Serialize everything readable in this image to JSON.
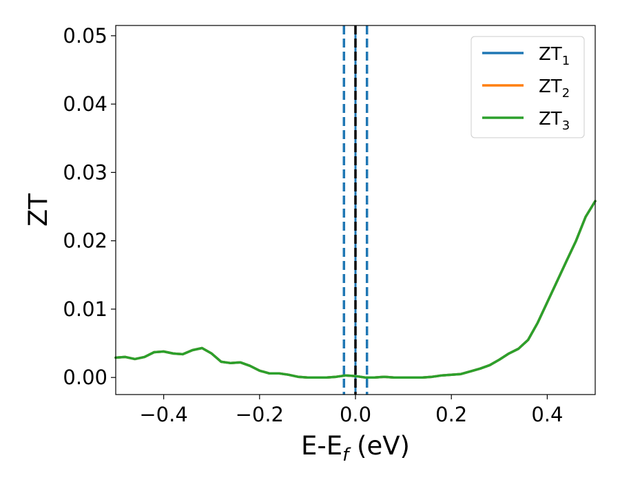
{
  "chart_data": {
    "type": "line",
    "xlabel": {
      "main": "E-E",
      "sub": "f",
      "unit": " (eV)"
    },
    "ylabel": "ZT",
    "xlim": [
      -0.5,
      0.5
    ],
    "ylim": [
      -0.0025,
      0.0515
    ],
    "xticks": [
      -0.4,
      -0.2,
      0.0,
      0.2,
      0.4
    ],
    "xtick_labels": [
      "−0.4",
      "−0.2",
      "0.0",
      "0.2",
      "0.4"
    ],
    "yticks": [
      0.0,
      0.01,
      0.02,
      0.03,
      0.04,
      0.05
    ],
    "ytick_labels": [
      "0.00",
      "0.01",
      "0.02",
      "0.03",
      "0.04",
      "0.05"
    ],
    "legend_position": "top-right",
    "series": [
      {
        "name": "ZT",
        "sub": "1",
        "color": "#1f77b4",
        "points": [
          [
            -0.5,
            0.0029
          ],
          [
            -0.48,
            0.003
          ],
          [
            -0.46,
            0.0027
          ],
          [
            -0.44,
            0.003
          ],
          [
            -0.42,
            0.0037
          ],
          [
            -0.4,
            0.0038
          ],
          [
            -0.38,
            0.0035
          ],
          [
            -0.36,
            0.0034
          ],
          [
            -0.34,
            0.004
          ],
          [
            -0.32,
            0.0043
          ],
          [
            -0.3,
            0.0035
          ],
          [
            -0.28,
            0.0023
          ],
          [
            -0.26,
            0.0021
          ],
          [
            -0.24,
            0.0022
          ],
          [
            -0.22,
            0.0017
          ],
          [
            -0.2,
            0.001
          ],
          [
            -0.18,
            0.0006
          ],
          [
            -0.16,
            0.0006
          ],
          [
            -0.14,
            0.0004
          ],
          [
            -0.12,
            0.0001
          ],
          [
            -0.1,
            0.0
          ],
          [
            -0.08,
            0.0
          ],
          [
            -0.06,
            0.0
          ],
          [
            -0.04,
            0.0001
          ],
          [
            -0.02,
            0.0003
          ],
          [
            0.0,
            0.0002
          ],
          [
            0.02,
            0.0
          ],
          [
            0.04,
            0.0
          ],
          [
            0.06,
            0.0001
          ],
          [
            0.08,
            0.0
          ],
          [
            0.1,
            0.0
          ],
          [
            0.12,
            0.0
          ],
          [
            0.14,
            0.0
          ],
          [
            0.16,
            0.0001
          ],
          [
            0.18,
            0.0003
          ],
          [
            0.2,
            0.0004
          ],
          [
            0.22,
            0.0005
          ],
          [
            0.24,
            0.0009
          ],
          [
            0.26,
            0.0013
          ],
          [
            0.28,
            0.0018
          ],
          [
            0.3,
            0.0026
          ],
          [
            0.32,
            0.0035
          ],
          [
            0.34,
            0.0042
          ],
          [
            0.36,
            0.0055
          ],
          [
            0.38,
            0.008
          ],
          [
            0.4,
            0.011
          ],
          [
            0.42,
            0.014
          ],
          [
            0.44,
            0.017
          ],
          [
            0.46,
            0.02
          ],
          [
            0.48,
            0.0235
          ],
          [
            0.5,
            0.0258
          ]
        ]
      },
      {
        "name": "ZT",
        "sub": "2",
        "color": "#ff7f0e",
        "points": [
          [
            -0.5,
            0.0029
          ],
          [
            -0.48,
            0.003
          ],
          [
            -0.46,
            0.0027
          ],
          [
            -0.44,
            0.003
          ],
          [
            -0.42,
            0.0037
          ],
          [
            -0.4,
            0.0038
          ],
          [
            -0.38,
            0.0035
          ],
          [
            -0.36,
            0.0034
          ],
          [
            -0.34,
            0.004
          ],
          [
            -0.32,
            0.0043
          ],
          [
            -0.3,
            0.0035
          ],
          [
            -0.28,
            0.0023
          ],
          [
            -0.26,
            0.0021
          ],
          [
            -0.24,
            0.0022
          ],
          [
            -0.22,
            0.0017
          ],
          [
            -0.2,
            0.001
          ],
          [
            -0.18,
            0.0006
          ],
          [
            -0.16,
            0.0006
          ],
          [
            -0.14,
            0.0004
          ],
          [
            -0.12,
            0.0001
          ],
          [
            -0.1,
            0.0
          ],
          [
            -0.08,
            0.0
          ],
          [
            -0.06,
            0.0
          ],
          [
            -0.04,
            0.0001
          ],
          [
            -0.02,
            0.0003
          ],
          [
            0.0,
            0.0002
          ],
          [
            0.02,
            0.0
          ],
          [
            0.04,
            0.0
          ],
          [
            0.06,
            0.0001
          ],
          [
            0.08,
            0.0
          ],
          [
            0.1,
            0.0
          ],
          [
            0.12,
            0.0
          ],
          [
            0.14,
            0.0
          ],
          [
            0.16,
            0.0001
          ],
          [
            0.18,
            0.0003
          ],
          [
            0.2,
            0.0004
          ],
          [
            0.22,
            0.0005
          ],
          [
            0.24,
            0.0009
          ],
          [
            0.26,
            0.0013
          ],
          [
            0.28,
            0.0018
          ],
          [
            0.3,
            0.0026
          ],
          [
            0.32,
            0.0035
          ],
          [
            0.34,
            0.0042
          ],
          [
            0.36,
            0.0055
          ],
          [
            0.38,
            0.008
          ],
          [
            0.4,
            0.011
          ],
          [
            0.42,
            0.014
          ],
          [
            0.44,
            0.017
          ],
          [
            0.46,
            0.02
          ],
          [
            0.48,
            0.0235
          ],
          [
            0.5,
            0.0258
          ]
        ]
      },
      {
        "name": "ZT",
        "sub": "3",
        "color": "#2ca02c",
        "points": [
          [
            -0.5,
            0.0029
          ],
          [
            -0.48,
            0.003
          ],
          [
            -0.46,
            0.0027
          ],
          [
            -0.44,
            0.003
          ],
          [
            -0.42,
            0.0037
          ],
          [
            -0.4,
            0.0038
          ],
          [
            -0.38,
            0.0035
          ],
          [
            -0.36,
            0.0034
          ],
          [
            -0.34,
            0.004
          ],
          [
            -0.32,
            0.0043
          ],
          [
            -0.3,
            0.0035
          ],
          [
            -0.28,
            0.0023
          ],
          [
            -0.26,
            0.0021
          ],
          [
            -0.24,
            0.0022
          ],
          [
            -0.22,
            0.0017
          ],
          [
            -0.2,
            0.001
          ],
          [
            -0.18,
            0.0006
          ],
          [
            -0.16,
            0.0006
          ],
          [
            -0.14,
            0.0004
          ],
          [
            -0.12,
            0.0001
          ],
          [
            -0.1,
            0.0
          ],
          [
            -0.08,
            0.0
          ],
          [
            -0.06,
            0.0
          ],
          [
            -0.04,
            0.0001
          ],
          [
            -0.02,
            0.0003
          ],
          [
            0.0,
            0.0002
          ],
          [
            0.02,
            0.0
          ],
          [
            0.04,
            0.0
          ],
          [
            0.06,
            0.0001
          ],
          [
            0.08,
            0.0
          ],
          [
            0.1,
            0.0
          ],
          [
            0.12,
            0.0
          ],
          [
            0.14,
            0.0
          ],
          [
            0.16,
            0.0001
          ],
          [
            0.18,
            0.0003
          ],
          [
            0.2,
            0.0004
          ],
          [
            0.22,
            0.0005
          ],
          [
            0.24,
            0.0009
          ],
          [
            0.26,
            0.0013
          ],
          [
            0.28,
            0.0018
          ],
          [
            0.3,
            0.0026
          ],
          [
            0.32,
            0.0035
          ],
          [
            0.34,
            0.0042
          ],
          [
            0.36,
            0.0055
          ],
          [
            0.38,
            0.008
          ],
          [
            0.4,
            0.011
          ],
          [
            0.42,
            0.014
          ],
          [
            0.44,
            0.017
          ],
          [
            0.46,
            0.02
          ],
          [
            0.48,
            0.0235
          ],
          [
            0.5,
            0.0258
          ]
        ]
      }
    ],
    "vertical_lines": [
      {
        "x": -0.024,
        "style": "dashed",
        "color": "#1f77b4"
      },
      {
        "x": 0.0,
        "style": "solid",
        "color": "#1f77b4"
      },
      {
        "x": 0.0,
        "style": "dashed",
        "color": "#000000"
      },
      {
        "x": 0.024,
        "style": "dashed",
        "color": "#1f77b4"
      }
    ]
  }
}
